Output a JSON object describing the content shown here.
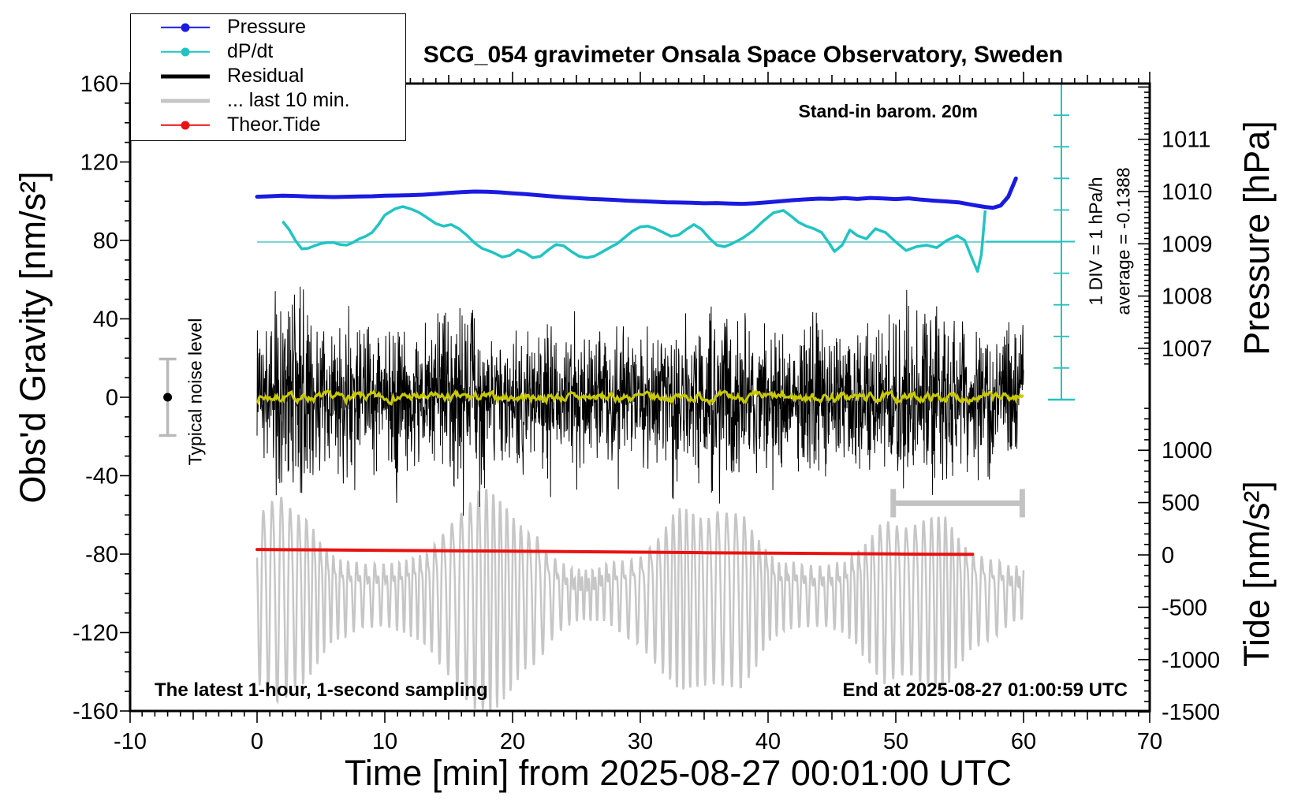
{
  "title": "SCG_054 gravimeter Onsala Space Observatory, Sweden",
  "annotations": {
    "stand_in": "Stand-in barom. 20m",
    "div_scale": "1 DIV = 1 hPa/h",
    "average": "average = -0.1388",
    "noise_label": "Typical noise level",
    "sampling_note": "The latest 1-hour, 1-second sampling",
    "end_note": "End at 2025-08-27 01:00:59 UTC"
  },
  "legend": {
    "items": [
      {
        "label": "Pressure",
        "color": "#1a1ae0",
        "line_width": 2.5,
        "dot": true
      },
      {
        "label": "dP/dt",
        "color": "#22c3c3",
        "line_width": 2.5,
        "dot": true
      },
      {
        "label": "Residual",
        "color": "#000000",
        "line_width": 5,
        "dot": false
      },
      {
        "label": "... last 10 min.",
        "color": "#c6c6c6",
        "line_width": 5,
        "dot": false
      },
      {
        "label": "Theor.Tide",
        "color": "#e81212",
        "line_width": 2.5,
        "dot": true
      }
    ]
  },
  "colors": {
    "pressure": "#1a1ae0",
    "dpdt": "#22c3c3",
    "dpdt_reference": "#7ed3d3",
    "residual": "#000000",
    "residual_smoothed": "#c9c900",
    "last10": "#c6c6c6",
    "last10_bar": "#c2c2c2",
    "theor_tide": "#e81212",
    "noise_bar": "#b9b9b9"
  },
  "chart_data": {
    "type": "line",
    "x_axis": {
      "label": "Time [min] from 2025-08-27 00:01:00 UTC",
      "range": [
        -10,
        70
      ],
      "major_tick": 10,
      "mid_tick": 5,
      "minor_tick": 1,
      "tick_labels": [
        -10,
        0,
        10,
        20,
        30,
        40,
        50,
        60,
        70
      ]
    },
    "gravity_axis": {
      "label": "Obs'd Gravity [nm/s²]",
      "range": [
        -160,
        160
      ],
      "major_tick": 40,
      "minor_tick": 10,
      "tick_labels": [
        160,
        120,
        80,
        40,
        0,
        -40,
        -80,
        -120,
        -160
      ]
    },
    "pressure_axis": {
      "label": "Pressure [hPa]",
      "range_shown": [
        1006.7,
        1012.1
      ],
      "major_tick": 1,
      "minor_tick": 0.1,
      "tick_labels": [
        1011,
        1010,
        1009,
        1008,
        1007
      ]
    },
    "tide_axis": {
      "label": "Tide [nm/s²]",
      "range_shown": [
        -1500,
        1400
      ],
      "major_tick": 500,
      "minor_tick": 100,
      "tick_labels": [
        1000,
        500,
        0,
        -500,
        -1000,
        -1500
      ]
    },
    "series": {
      "pressure": {
        "name": "Pressure",
        "unit": "hPa",
        "points": [
          [
            0,
            1009.9
          ],
          [
            1,
            1009.91
          ],
          [
            2,
            1009.92
          ],
          [
            3,
            1009.915
          ],
          [
            4,
            1009.905
          ],
          [
            5,
            1009.9
          ],
          [
            6,
            1009.895
          ],
          [
            7,
            1009.9
          ],
          [
            8,
            1009.905
          ],
          [
            9,
            1009.91
          ],
          [
            10,
            1009.92
          ],
          [
            11,
            1009.925
          ],
          [
            12,
            1009.93
          ],
          [
            13,
            1009.94
          ],
          [
            14,
            1009.955
          ],
          [
            15,
            1009.975
          ],
          [
            16,
            1009.99
          ],
          [
            17,
            1010.0
          ],
          [
            18,
            1009.995
          ],
          [
            19,
            1009.985
          ],
          [
            20,
            1009.965
          ],
          [
            21,
            1009.95
          ],
          [
            22,
            1009.93
          ],
          [
            23,
            1009.91
          ],
          [
            24,
            1009.89
          ],
          [
            25,
            1009.875
          ],
          [
            26,
            1009.86
          ],
          [
            27,
            1009.85
          ],
          [
            28,
            1009.84
          ],
          [
            29,
            1009.825
          ],
          [
            30,
            1009.815
          ],
          [
            31,
            1009.805
          ],
          [
            32,
            1009.795
          ],
          [
            33,
            1009.79
          ],
          [
            34,
            1009.785
          ],
          [
            35,
            1009.775
          ],
          [
            36,
            1009.78
          ],
          [
            37,
            1009.77
          ],
          [
            38,
            1009.765
          ],
          [
            39,
            1009.775
          ],
          [
            40,
            1009.795
          ],
          [
            41,
            1009.815
          ],
          [
            42,
            1009.835
          ],
          [
            43,
            1009.85
          ],
          [
            44,
            1009.865
          ],
          [
            45,
            1009.858
          ],
          [
            46,
            1009.875
          ],
          [
            47,
            1009.858
          ],
          [
            48,
            1009.878
          ],
          [
            49,
            1009.868
          ],
          [
            50,
            1009.855
          ],
          [
            51,
            1009.87
          ],
          [
            52,
            1009.845
          ],
          [
            53,
            1009.825
          ],
          [
            54,
            1009.81
          ],
          [
            55,
            1009.79
          ],
          [
            56,
            1009.745
          ],
          [
            57,
            1009.705
          ],
          [
            57.6,
            1009.69
          ],
          [
            58.2,
            1009.73
          ],
          [
            58.8,
            1009.9
          ],
          [
            59.4,
            1010.25
          ]
        ]
      },
      "dpdt": {
        "name": "dP/dt",
        "unit": "hPa/h",
        "scale_note": "1 DIV = 1 hPa/h",
        "average": -0.1388,
        "reference_value": 0,
        "points": [
          [
            2,
            0.65
          ],
          [
            2.5,
            0.4
          ],
          [
            3,
            0.05
          ],
          [
            3.5,
            -0.22
          ],
          [
            4,
            -0.2
          ],
          [
            4.5,
            -0.12
          ],
          [
            5,
            -0.05
          ],
          [
            5.5,
            -0.02
          ],
          [
            6,
            -0.02
          ],
          [
            6.5,
            -0.08
          ],
          [
            7,
            -0.1
          ],
          [
            7.5,
            -0.02
          ],
          [
            8,
            0.1
          ],
          [
            8.5,
            0.18
          ],
          [
            9,
            0.3
          ],
          [
            9.5,
            0.55
          ],
          [
            10,
            0.85
          ],
          [
            10.8,
            1.05
          ],
          [
            11.4,
            1.12
          ],
          [
            12,
            1.05
          ],
          [
            12.6,
            0.95
          ],
          [
            13.2,
            0.8
          ],
          [
            14,
            0.58
          ],
          [
            14.6,
            0.5
          ],
          [
            15.2,
            0.55
          ],
          [
            15.8,
            0.42
          ],
          [
            16.4,
            0.22
          ],
          [
            17,
            -0.02
          ],
          [
            17.6,
            -0.2
          ],
          [
            18.4,
            -0.32
          ],
          [
            19.2,
            -0.48
          ],
          [
            19.8,
            -0.42
          ],
          [
            20.4,
            -0.25
          ],
          [
            21,
            -0.35
          ],
          [
            21.6,
            -0.5
          ],
          [
            22.2,
            -0.45
          ],
          [
            22.8,
            -0.25
          ],
          [
            23.4,
            -0.08
          ],
          [
            24,
            -0.12
          ],
          [
            24.6,
            -0.3
          ],
          [
            25.2,
            -0.45
          ],
          [
            25.8,
            -0.5
          ],
          [
            26.4,
            -0.45
          ],
          [
            27,
            -0.32
          ],
          [
            27.6,
            -0.18
          ],
          [
            28.2,
            -0.05
          ],
          [
            28.8,
            0.15
          ],
          [
            29.4,
            0.35
          ],
          [
            30,
            0.48
          ],
          [
            30.6,
            0.5
          ],
          [
            31.2,
            0.42
          ],
          [
            31.8,
            0.3
          ],
          [
            32.4,
            0.18
          ],
          [
            33,
            0.22
          ],
          [
            33.6,
            0.4
          ],
          [
            34.2,
            0.55
          ],
          [
            34.8,
            0.4
          ],
          [
            35.4,
            0.12
          ],
          [
            36,
            -0.1
          ],
          [
            36.6,
            -0.15
          ],
          [
            37.2,
            -0.05
          ],
          [
            38,
            0.12
          ],
          [
            38.8,
            0.35
          ],
          [
            39.6,
            0.65
          ],
          [
            40.4,
            0.92
          ],
          [
            41.2,
            1.0
          ],
          [
            41.8,
            0.82
          ],
          [
            42.4,
            0.62
          ],
          [
            43,
            0.5
          ],
          [
            43.6,
            0.42
          ],
          [
            44.2,
            0.3
          ],
          [
            44.8,
            -0.05
          ],
          [
            45.2,
            -0.3
          ],
          [
            45.8,
            -0.1
          ],
          [
            46.4,
            0.38
          ],
          [
            47,
            0.2
          ],
          [
            47.7,
            0.1
          ],
          [
            48.4,
            0.42
          ],
          [
            49.2,
            0.3
          ],
          [
            50,
            0.0
          ],
          [
            50.8,
            -0.27
          ],
          [
            51.6,
            -0.15
          ],
          [
            52.4,
            -0.1
          ],
          [
            53.2,
            -0.18
          ],
          [
            54,
            0.05
          ],
          [
            54.8,
            0.2
          ],
          [
            55.4,
            0.05
          ],
          [
            56,
            -0.55
          ],
          [
            56.4,
            -0.93
          ],
          [
            56.7,
            -0.4
          ],
          [
            57,
            1.0
          ]
        ]
      },
      "theor_tide": {
        "name": "Theor.Tide",
        "unit": "nm/s² (tide axis)",
        "points": [
          [
            0,
            52
          ],
          [
            5,
            48
          ],
          [
            10,
            44
          ],
          [
            15,
            40
          ],
          [
            20,
            36
          ],
          [
            25,
            31
          ],
          [
            30,
            26
          ],
          [
            35,
            21
          ],
          [
            40,
            17
          ],
          [
            45,
            13
          ],
          [
            50,
            9
          ],
          [
            53,
            7
          ],
          [
            56,
            5
          ]
        ]
      },
      "residual": {
        "name": "Residual",
        "unit": "nm/s²",
        "mean": 0,
        "sampling_s": 1,
        "seed": 20250827,
        "points_per_minute": 40,
        "envelope_nm_s2": [
          38,
          42,
          58,
          72,
          55,
          46,
          42,
          50,
          46,
          42,
          46,
          52,
          42,
          46,
          42,
          56,
          62,
          56,
          46,
          42,
          46,
          42,
          36,
          55,
          42,
          46,
          42,
          46,
          52,
          46,
          42,
          46,
          50,
          56,
          52,
          56,
          60,
          50,
          46,
          42,
          46,
          52,
          46,
          50,
          46,
          42,
          46,
          52,
          46,
          42,
          50,
          56,
          60,
          56,
          50,
          46,
          50,
          46,
          42,
          50,
          46
        ]
      },
      "residual_smoothed": {
        "name": "Residual (smoothed)",
        "unit": "nm/s²",
        "mean": 0,
        "amplitude": 5,
        "seed": 7
      },
      "residual_last10": {
        "name": "... last 10 min.",
        "unit": "nm/s²",
        "display_center": -98,
        "oscillation_period_min": 0.62,
        "seed": 10059,
        "envelope_nm_s2": [
          45,
          55,
          60,
          55,
          60,
          50,
          45,
          50,
          55,
          60,
          55,
          50,
          45,
          40,
          45,
          50,
          55,
          60,
          65,
          60,
          55,
          50,
          55,
          45,
          40,
          35,
          40,
          45,
          50,
          45,
          40,
          45,
          50,
          55,
          50,
          45,
          50,
          55,
          65,
          60,
          50,
          45,
          55,
          60,
          50,
          45,
          40,
          45,
          50,
          55,
          45,
          40,
          45,
          50,
          55,
          45,
          40,
          45,
          50,
          45,
          40
        ]
      }
    },
    "markers": {
      "noise_marker": {
        "t": -7,
        "gravity": 0,
        "half_range": 19.5,
        "label": "Typical noise level"
      },
      "last10_window": {
        "t_start": 49.8,
        "t_end": 59.9,
        "gravity": -54
      },
      "dpdt_scale_bar": {
        "divisions": 10,
        "div_equals": "1 hPa/h"
      }
    }
  }
}
